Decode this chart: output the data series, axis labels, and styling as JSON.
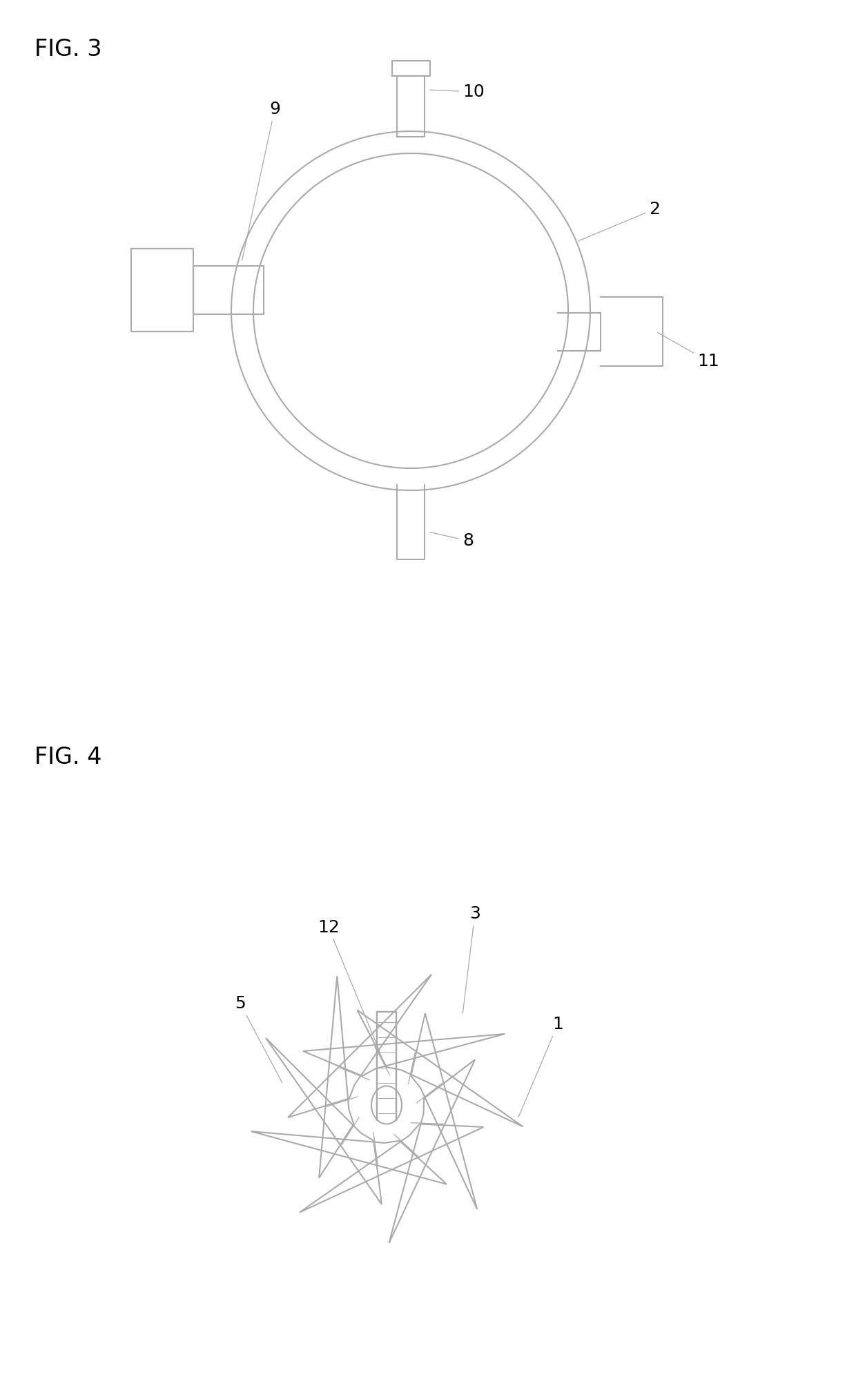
{
  "fig3_title": "FIG. 3",
  "fig4_title": "FIG. 4",
  "bg_color": "#ffffff",
  "line_color": "#aaaaaa",
  "text_color": "#000000",
  "line_width": 1.5
}
